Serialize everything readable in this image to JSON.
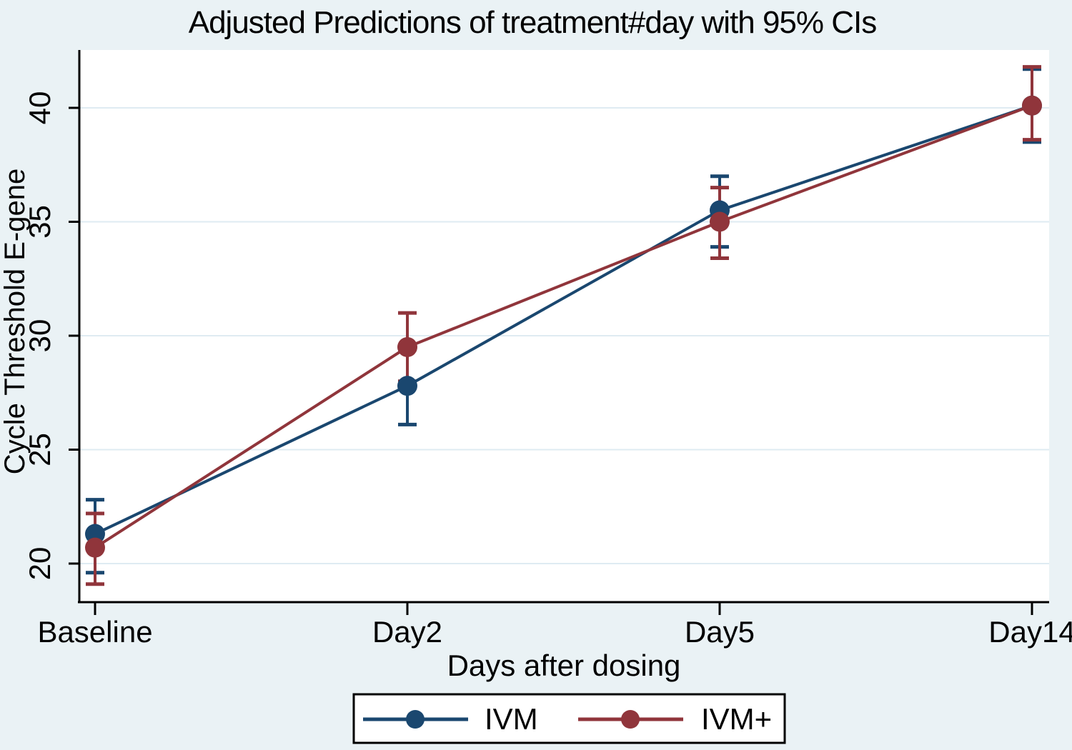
{
  "title": "Adjusted Predictions of treatment#day with 95% CIs",
  "chart_data": {
    "type": "line",
    "title": "Adjusted Predictions of treatment#day with 95% CIs",
    "xlabel": "Days after dosing",
    "ylabel": "Cycle Threshold E-gene",
    "categories": [
      "Baseline",
      "Day2",
      "Day5",
      "Day14"
    ],
    "yticks": [
      "20",
      "25",
      "30",
      "35",
      "40"
    ],
    "ylim": [
      18.3,
      42.5
    ],
    "grid": "horizontal",
    "legend_position": "bottom",
    "error_bars": "95% CI with caps",
    "series": [
      {
        "name": "IVM",
        "color": "#1a476f",
        "values": [
          21.3,
          27.8,
          35.5,
          40.1
        ],
        "ci_low": [
          19.6,
          26.1,
          33.9,
          38.5
        ],
        "ci_high": [
          22.8,
          29.4,
          37.0,
          41.7
        ]
      },
      {
        "name": "IVM+",
        "color": "#90353b",
        "values": [
          20.7,
          29.5,
          35.0,
          40.1
        ],
        "ci_low": [
          19.1,
          28.0,
          33.4,
          38.6
        ],
        "ci_high": [
          22.2,
          31.0,
          36.5,
          41.8
        ]
      }
    ]
  },
  "legend": {
    "items": [
      {
        "label": "IVM"
      },
      {
        "label": "IVM+"
      }
    ]
  },
  "colors": {
    "background": "#eaf2f5",
    "plot_background": "#ffffff",
    "grid": "#dfebf2",
    "axis": "#000000",
    "title": "#24355c",
    "legend_border": "#000000",
    "legend_fill": "#ffffff"
  }
}
